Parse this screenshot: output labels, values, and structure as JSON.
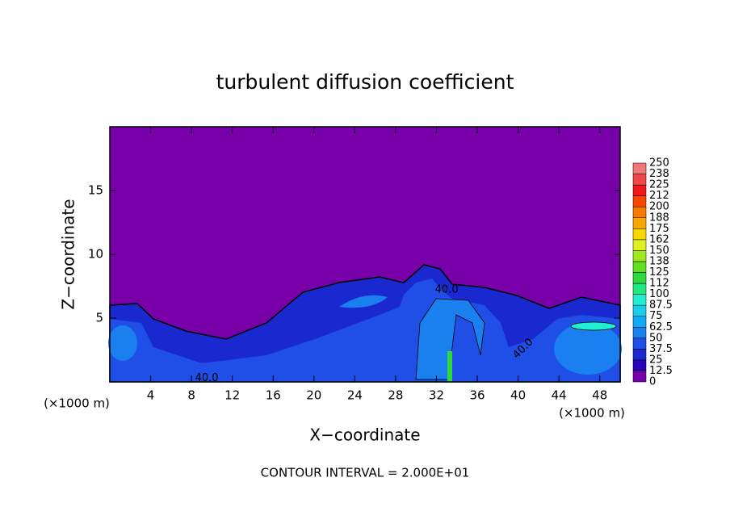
{
  "chart_data": {
    "type": "contour",
    "title": "turbulent diffusion coefficient",
    "x_label": "X−coordinate",
    "y_label": "Z−coordinate",
    "x_unit_labels": [
      "(×1000 m)",
      "(×1000 m)"
    ],
    "xlim": [
      0,
      50
    ],
    "xticks": [
      4,
      8,
      12,
      16,
      20,
      24,
      28,
      32,
      36,
      40,
      44,
      48
    ],
    "ylim": [
      0,
      20
    ],
    "yticks": [
      5,
      10,
      15
    ],
    "contour_labels": [
      {
        "text": "40.0",
        "x": 33,
        "z": 7.2
      },
      {
        "text": "40.0",
        "x": 9.5,
        "z": 0.3
      },
      {
        "text": "40.0",
        "x": 40.5,
        "z": 2.6
      }
    ],
    "colorbar": {
      "levels": [
        0,
        12.5,
        25,
        37.5,
        50,
        62.5,
        75,
        87.5,
        100,
        {
          "value": 112.5,
          "label": "112"
        },
        125,
        {
          "value": 137.5,
          "label": "138"
        },
        150,
        {
          "value": 162.5,
          "label": "162"
        },
        175,
        {
          "value": 187.5,
          "label": "188"
        },
        200,
        {
          "value": 212.5,
          "label": "212"
        },
        225,
        {
          "value": 237.5,
          "label": "238"
        },
        250
      ],
      "colors": [
        "#7800a8",
        "#2a00b8",
        "#1a28d0",
        "#1f4fe6",
        "#1a80f0",
        "#10aaf2",
        "#18d0ee",
        "#20f0d0",
        "#20e880",
        "#30d840",
        "#60e020",
        "#a0e820",
        "#e0f020",
        "#f8d800",
        "#f8a800",
        "#f87800",
        "#f84800",
        "#f01818",
        "#f04848",
        "#f07878"
      ]
    },
    "annotation": "CONTOUR INTERVAL = 2.000E+01"
  }
}
